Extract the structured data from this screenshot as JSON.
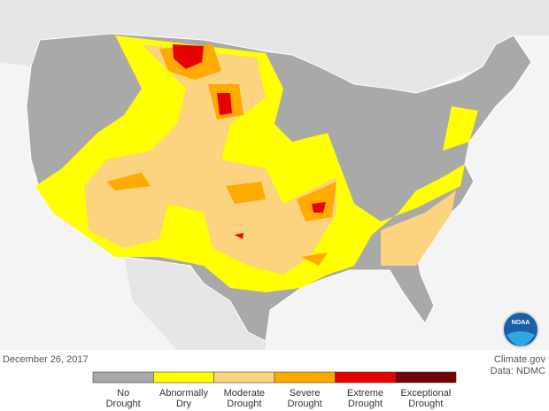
{
  "date": "December 26, 2017",
  "credits": [
    "Climate.gov",
    "Data: NDMC"
  ],
  "logo": "NOAA",
  "legend": [
    {
      "label": [
        "No",
        "Drought"
      ],
      "color": "#a9a9a9"
    },
    {
      "label": [
        "Abnormally",
        "Dry"
      ],
      "color": "#ffff00"
    },
    {
      "label": [
        "Moderate",
        "Drought"
      ],
      "color": "#fcd37f"
    },
    {
      "label": [
        "Severe",
        "Drought"
      ],
      "color": "#ffaa00"
    },
    {
      "label": [
        "Extreme",
        "Drought"
      ],
      "color": "#e60000"
    },
    {
      "label": [
        "Exceptional",
        "Drought"
      ],
      "color": "#730000"
    }
  ]
}
